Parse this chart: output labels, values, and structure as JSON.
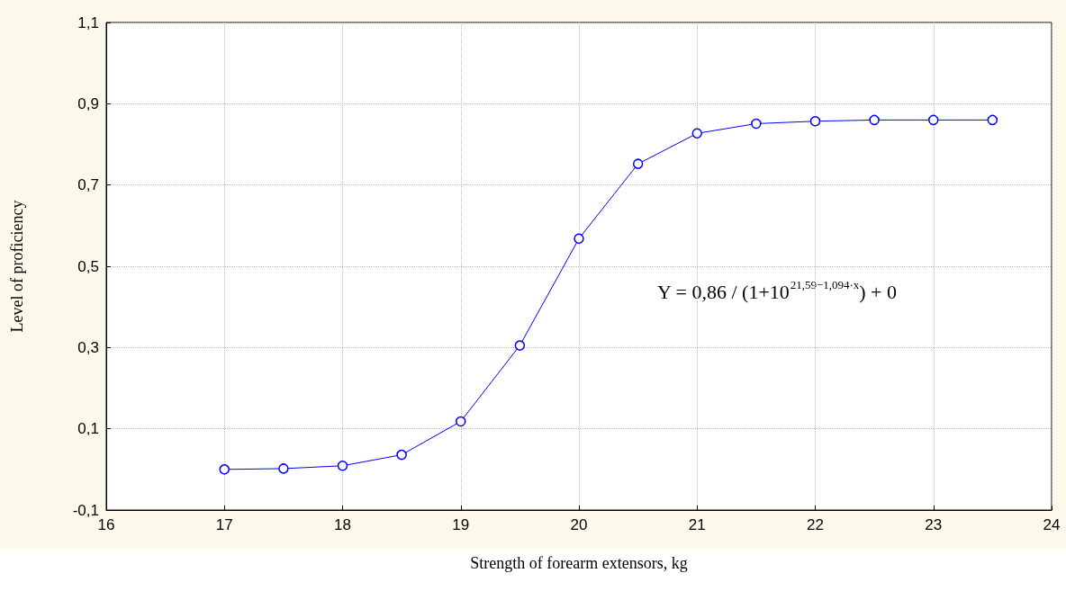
{
  "chart_data": {
    "type": "line",
    "xlabel": "Strength of forearm extensors, kg",
    "ylabel": "Level of proficiency",
    "x": [
      17,
      17.5,
      18,
      18.5,
      19,
      19.5,
      20,
      20.5,
      21,
      21.5,
      22,
      22.5,
      23,
      23.5
    ],
    "series": [
      {
        "color": "#0000ff",
        "values": [
          0.0,
          0.002,
          0.009,
          0.036,
          0.118,
          0.305,
          0.568,
          0.752,
          0.827,
          0.851,
          0.857,
          0.86,
          0.86,
          0.86
        ]
      }
    ],
    "xlim": [
      16,
      24
    ],
    "xticks": [
      16,
      17,
      18,
      19,
      20,
      21,
      22,
      23,
      24
    ],
    "ylim": [
      -0.1,
      1.1
    ],
    "yticks": [
      {
        "value": -0.1,
        "label": "-0,1"
      },
      {
        "value": 0.1,
        "label": "0,1"
      },
      {
        "value": 0.3,
        "label": "0,3"
      },
      {
        "value": 0.5,
        "label": "0,5"
      },
      {
        "value": 0.7,
        "label": "0,7"
      },
      {
        "value": 0.9,
        "label": "0,9"
      },
      {
        "value": 1.1,
        "label": "1,1"
      }
    ],
    "grid": true,
    "marker": "circle",
    "line_style": "solid",
    "annotations": [
      "Y = 0,86 / (1+10$^{21,59−1,094·x}$) + 0"
    ]
  }
}
